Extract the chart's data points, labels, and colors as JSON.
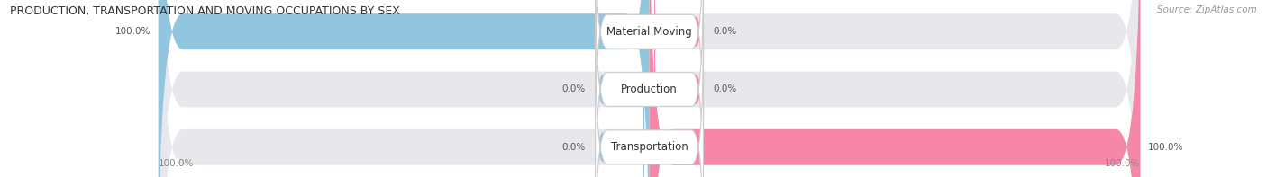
{
  "title": "PRODUCTION, TRANSPORTATION AND MOVING OCCUPATIONS BY SEX",
  "source": "Source: ZipAtlas.com",
  "categories": [
    "Material Moving",
    "Production",
    "Transportation"
  ],
  "male_values": [
    100.0,
    0.0,
    0.0
  ],
  "female_values": [
    0.0,
    0.0,
    100.0
  ],
  "male_color": "#92C5DE",
  "female_color": "#F687A8",
  "bar_bg_color": "#E8E8EC",
  "figsize": [
    14.06,
    1.97
  ],
  "dpi": 100,
  "title_fontsize": 9.0,
  "source_fontsize": 7.5,
  "label_fontsize": 7.5,
  "cat_fontsize": 8.5,
  "legend_fontsize": 8.5
}
